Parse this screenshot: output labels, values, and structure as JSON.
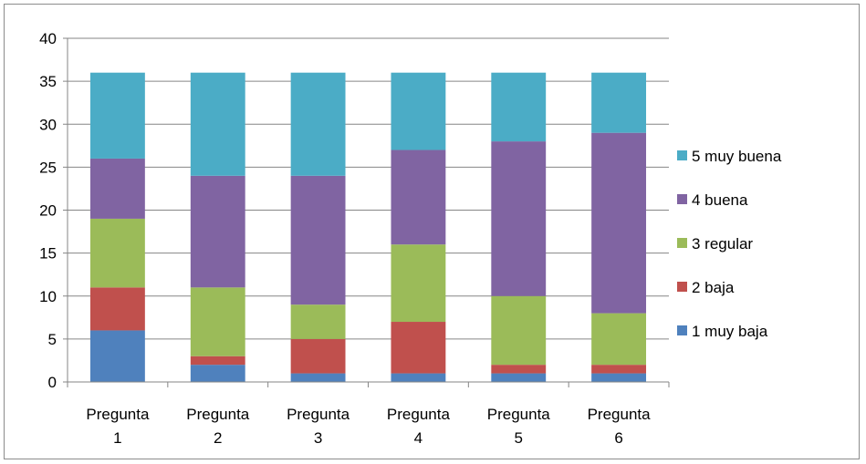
{
  "chart_data": {
    "type": "bar",
    "stacked": true,
    "categories": [
      [
        "Pregunta",
        "1"
      ],
      [
        "Pregunta",
        "2"
      ],
      [
        "Pregunta",
        "3"
      ],
      [
        "Pregunta",
        "4"
      ],
      [
        "Pregunta",
        "5"
      ],
      [
        "Pregunta",
        "6"
      ]
    ],
    "series": [
      {
        "name": "1 muy baja",
        "color": "#4f81bd",
        "values": [
          6,
          2,
          1,
          1,
          1,
          1
        ]
      },
      {
        "name": "2 baja",
        "color": "#c0504d",
        "values": [
          5,
          1,
          4,
          6,
          1,
          1
        ]
      },
      {
        "name": "3 regular",
        "color": "#9bbb59",
        "values": [
          8,
          8,
          4,
          9,
          8,
          6
        ]
      },
      {
        "name": "4 buena",
        "color": "#8064a2",
        "values": [
          7,
          13,
          15,
          11,
          18,
          21
        ]
      },
      {
        "name": "5 muy buena",
        "color": "#4bacc6",
        "values": [
          10,
          12,
          12,
          9,
          8,
          7
        ]
      }
    ],
    "ylim": [
      0,
      40
    ],
    "yticks": [
      "0",
      "5",
      "10",
      "15",
      "20",
      "25",
      "30",
      "35",
      "40"
    ],
    "grid": true,
    "legend_position": "right",
    "xlabel": "",
    "ylabel": "",
    "title": ""
  }
}
